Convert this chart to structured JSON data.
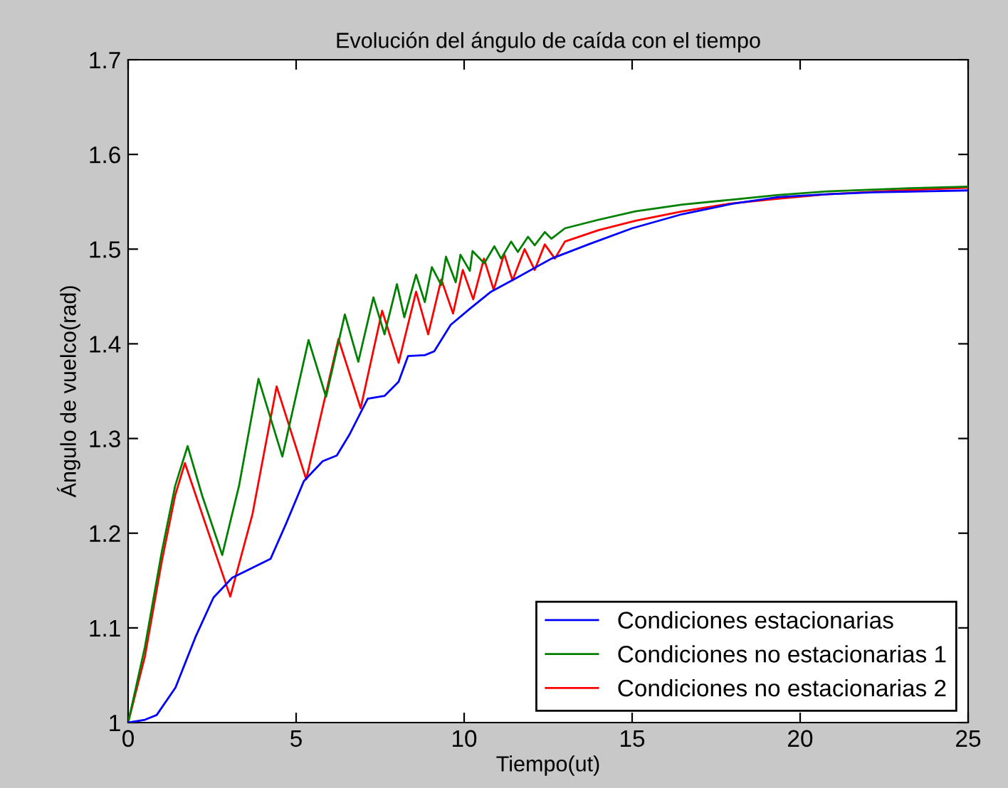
{
  "chart_data": {
    "type": "line",
    "title": "Evolución del ángulo de caída con el tiempo",
    "xlabel": "Tiempo(ut)",
    "ylabel": "Ángulo de vuelco(rad)",
    "xlim": [
      0,
      25
    ],
    "ylim": [
      1,
      1.7
    ],
    "xticks": [
      0,
      5,
      10,
      15,
      20,
      25
    ],
    "yticks": [
      1,
      1.1,
      1.2,
      1.3,
      1.4,
      1.5,
      1.6,
      1.7
    ],
    "grid": false,
    "legend": "bottom right",
    "line_style": "solid",
    "marker": "none",
    "series": [
      {
        "name": "Condiciones estacionarias",
        "color": "#0000ff",
        "x": [
          0,
          0.5,
          0.85,
          1.41,
          2.0,
          2.54,
          3.1,
          3.5,
          4.24,
          4.7,
          5.23,
          5.79,
          6.21,
          6.6,
          7.13,
          7.63,
          8.05,
          8.33,
          8.83,
          9.11,
          9.6,
          10.17,
          10.8,
          11.58,
          12.6,
          13.7,
          15.0,
          16.5,
          18.0,
          19.35,
          20.8,
          22.2,
          23.6,
          25
        ],
        "values": [
          1.0,
          1.003,
          1.008,
          1.037,
          1.09,
          1.132,
          1.153,
          1.16,
          1.173,
          1.21,
          1.255,
          1.276,
          1.282,
          1.305,
          1.342,
          1.345,
          1.36,
          1.387,
          1.388,
          1.392,
          1.42,
          1.437,
          1.455,
          1.47,
          1.49,
          1.505,
          1.522,
          1.537,
          1.548,
          1.555,
          1.558,
          1.56,
          1.561,
          1.562
        ]
      },
      {
        "name": "Condiciones no estacionarias 1",
        "color": "#008000",
        "x": [
          0,
          0.5,
          1.0,
          1.4,
          1.77,
          2.2,
          2.8,
          3.3,
          3.88,
          4.59,
          5.37,
          5.89,
          6.45,
          6.85,
          7.3,
          7.63,
          8.0,
          8.22,
          8.57,
          8.83,
          9.04,
          9.32,
          9.46,
          9.75,
          9.89,
          10.17,
          10.25,
          10.6,
          10.9,
          11.1,
          11.4,
          11.6,
          11.9,
          12.1,
          12.4,
          12.6,
          13.0,
          14.0,
          15.1,
          16.5,
          17.9,
          19.3,
          20.8,
          23.0,
          25
        ],
        "values": [
          1.0,
          1.08,
          1.18,
          1.25,
          1.292,
          1.24,
          1.177,
          1.25,
          1.363,
          1.281,
          1.404,
          1.344,
          1.431,
          1.381,
          1.449,
          1.41,
          1.463,
          1.428,
          1.473,
          1.444,
          1.481,
          1.462,
          1.492,
          1.465,
          1.494,
          1.477,
          1.498,
          1.485,
          1.503,
          1.49,
          1.508,
          1.497,
          1.513,
          1.504,
          1.518,
          1.511,
          1.522,
          1.531,
          1.54,
          1.547,
          1.552,
          1.557,
          1.561,
          1.564,
          1.566
        ]
      },
      {
        "name": "Condiciones no estacionarias 2",
        "color": "#ff0000",
        "x": [
          0,
          0.5,
          1.0,
          1.4,
          1.69,
          2.3,
          3.04,
          3.7,
          4.42,
          5.3,
          6.26,
          6.92,
          7.56,
          8.05,
          8.57,
          8.93,
          9.32,
          9.67,
          9.96,
          10.27,
          10.59,
          10.88,
          11.19,
          11.44,
          11.8,
          12.1,
          12.4,
          12.7,
          13.0,
          14.0,
          15.1,
          16.5,
          17.9,
          19.3,
          20.8,
          23.0,
          25
        ],
        "values": [
          1.0,
          1.07,
          1.17,
          1.24,
          1.274,
          1.21,
          1.133,
          1.22,
          1.355,
          1.257,
          1.405,
          1.332,
          1.435,
          1.38,
          1.455,
          1.41,
          1.468,
          1.432,
          1.478,
          1.447,
          1.49,
          1.457,
          1.495,
          1.467,
          1.5,
          1.478,
          1.505,
          1.49,
          1.508,
          1.52,
          1.53,
          1.54,
          1.548,
          1.553,
          1.558,
          1.562,
          1.565
        ]
      }
    ]
  }
}
